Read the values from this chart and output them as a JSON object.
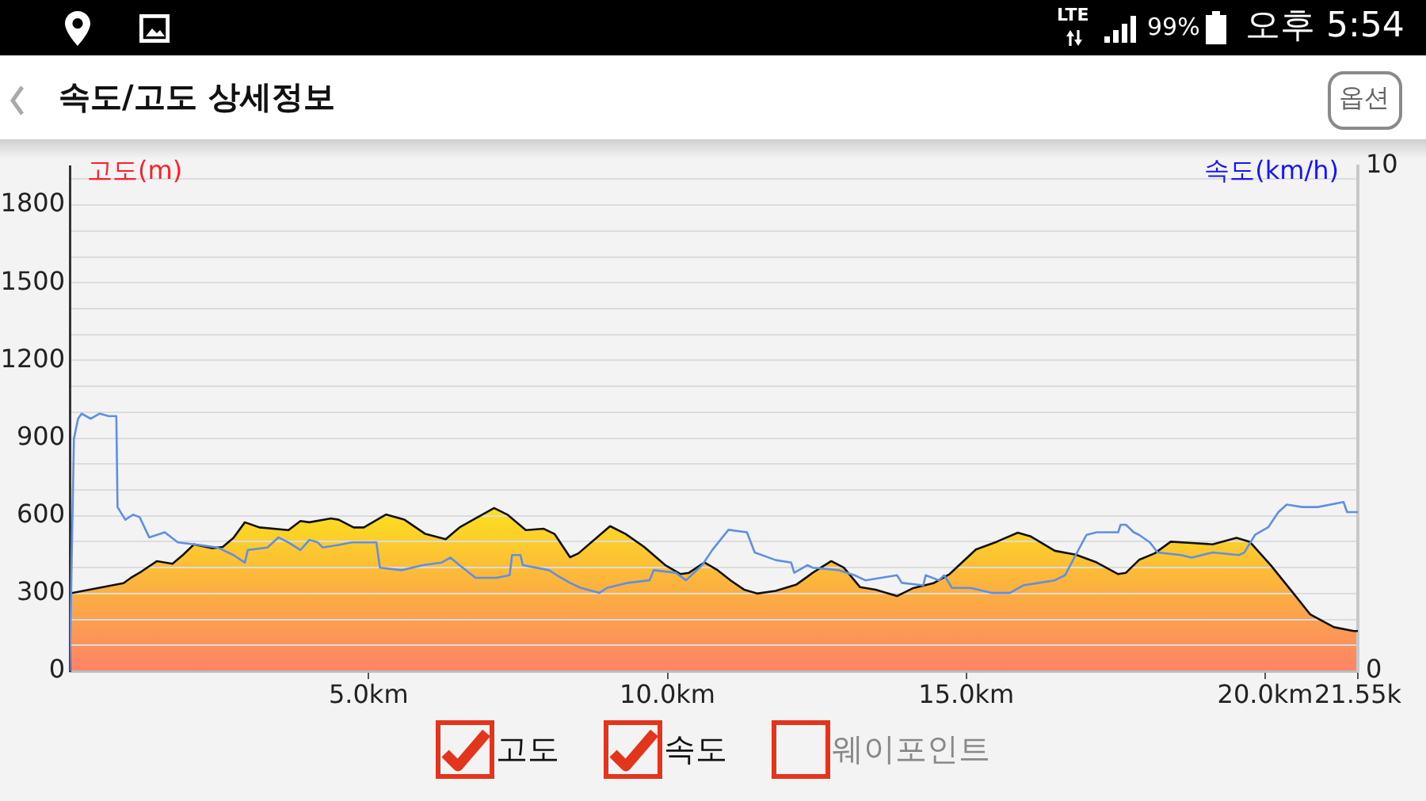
{
  "chart_data": {
    "type": "area",
    "title": "속도/고도 상세정보",
    "ylabel": "고도(m)",
    "y2label": "속도(km/h)",
    "annotations": [
      "LTE",
      "99%",
      "오후 5:54",
      "옵션",
      "고도",
      "속도",
      "웨이포인트"
    ],
    "xlim": [
      0,
      21.55
    ],
    "xticks": [
      {
        "value": 5,
        "label": "5.0km"
      },
      {
        "value": 10,
        "label": "10.0km"
      },
      {
        "value": 15,
        "label": "15.0km"
      },
      {
        "value": 20,
        "label": "20.0km"
      },
      {
        "value": 21.55,
        "label": "21.55k"
      }
    ],
    "ylim": [
      0,
      1950
    ],
    "yticks": [
      0,
      {
        "value": 100,
        "label": null
      },
      {
        "value": 200,
        "label": null
      },
      300,
      {
        "value": 400,
        "label": null
      },
      {
        "value": 500,
        "label": null
      },
      600,
      {
        "value": 700,
        "label": null
      },
      {
        "value": 800,
        "label": null
      },
      900,
      {
        "value": 1000,
        "label": null
      },
      {
        "value": 1100,
        "label": null
      },
      1200,
      {
        "value": 1300,
        "label": null
      },
      {
        "value": 1400,
        "label": null
      },
      1500,
      {
        "value": 1600,
        "label": null
      },
      {
        "value": 1700,
        "label": null
      },
      1800,
      {
        "value": 1900,
        "label": null
      }
    ],
    "y2lim": [
      0,
      10
    ],
    "y2ticks": [
      0,
      10
    ],
    "grid": "y",
    "series": [
      {
        "type": "area",
        "color": "#fcb040",
        "x": [
          0,
          0.9,
          1.02,
          1.2,
          1.46,
          1.72,
          1.9,
          2.08,
          2.38,
          2.56,
          2.74,
          2.93,
          3.18,
          3.66,
          3.86,
          4.01,
          4.37,
          4.5,
          4.75,
          4.92,
          5.29,
          5.6,
          5.95,
          6.29,
          6.52,
          6.79,
          7.1,
          7.32,
          7.63,
          7.93,
          8.11,
          8.37,
          8.51,
          9.04,
          9.3,
          9.61,
          9.96,
          10.22,
          10.36,
          10.62,
          10.84,
          11.06,
          11.28,
          11.5,
          11.81,
          12.16,
          12.43,
          12.74,
          12.95,
          13.22,
          13.48,
          13.84,
          14.1,
          14.45,
          14.72,
          15.16,
          15.51,
          15.86,
          16.08,
          16.48,
          16.83,
          17.18,
          17.54,
          17.67,
          17.89,
          18.15,
          18.42,
          18.77,
          19.12,
          19.52,
          19.74,
          20.09,
          20.44,
          20.75,
          21.15,
          21.48,
          21.55
        ],
        "values": [
          300,
          340,
          360,
          385,
          425,
          415,
          450,
          490,
          475,
          480,
          515,
          575,
          555,
          545,
          580,
          575,
          590,
          585,
          555,
          555,
          605,
          585,
          530,
          510,
          555,
          590,
          630,
          605,
          545,
          550,
          530,
          440,
          455,
          560,
          530,
          480,
          410,
          375,
          380,
          420,
          390,
          350,
          315,
          300,
          310,
          335,
          380,
          425,
          400,
          325,
          315,
          290,
          320,
          340,
          375,
          470,
          500,
          535,
          520,
          465,
          450,
          420,
          375,
          380,
          430,
          455,
          500,
          495,
          490,
          515,
          500,
          410,
          310,
          220,
          170,
          155,
          155
        ]
      },
      {
        "type": "line",
        "color": "#5f8fe3",
        "axis": "y2",
        "x": [
          0,
          0.07,
          0.14,
          0.2,
          0.35,
          0.5,
          0.65,
          0.78,
          0.8,
          0.93,
          1.06,
          1.17,
          1.33,
          1.59,
          1.81,
          2.16,
          2.47,
          2.74,
          2.93,
          2.98,
          3.31,
          3.49,
          3.66,
          3.86,
          4.01,
          4.15,
          4.23,
          4.5,
          4.72,
          4.94,
          5.13,
          5.19,
          5.55,
          5.91,
          6.22,
          6.37,
          6.52,
          6.79,
          7.14,
          7.36,
          7.4,
          7.54,
          7.58,
          8.02,
          8.15,
          8.37,
          8.55,
          8.86,
          8.99,
          9.34,
          9.7,
          9.77,
          10.14,
          10.31,
          10.58,
          10.75,
          11.02,
          11.33,
          11.46,
          11.81,
          12.07,
          12.12,
          12.34,
          12.43,
          12.87,
          13.13,
          13.31,
          13.84,
          13.92,
          14.28,
          14.32,
          14.54,
          14.63,
          14.76,
          15.07,
          15.42,
          15.73,
          15.95,
          16.22,
          16.48,
          16.65,
          16.83,
          17.01,
          17.18,
          17.54,
          17.58,
          17.67,
          17.8,
          17.89,
          18.07,
          18.2,
          18.59,
          18.77,
          19.12,
          19.56,
          19.65,
          19.83,
          20.05,
          20.22,
          20.36,
          20.62,
          20.88,
          21.31,
          21.37,
          21.55
        ],
        "values": [
          0,
          4.6,
          5.0,
          5.1,
          5.0,
          5.1,
          5.05,
          5.05,
          3.25,
          3.0,
          3.1,
          3.05,
          2.65,
          2.75,
          2.55,
          2.5,
          2.45,
          2.3,
          2.15,
          2.4,
          2.45,
          2.65,
          2.55,
          2.4,
          2.6,
          2.55,
          2.45,
          2.5,
          2.55,
          2.55,
          2.55,
          2.05,
          2.0,
          2.1,
          2.15,
          2.25,
          2.1,
          1.85,
          1.85,
          1.9,
          2.3,
          2.3,
          2.1,
          2.0,
          1.9,
          1.75,
          1.65,
          1.55,
          1.65,
          1.75,
          1.8,
          2.0,
          1.95,
          1.8,
          2.1,
          2.4,
          2.8,
          2.75,
          2.35,
          2.2,
          2.15,
          1.95,
          2.1,
          2.05,
          2.0,
          1.9,
          1.8,
          1.9,
          1.75,
          1.7,
          1.9,
          1.8,
          1.9,
          1.65,
          1.65,
          1.55,
          1.55,
          1.7,
          1.75,
          1.8,
          1.9,
          2.3,
          2.7,
          2.75,
          2.75,
          2.9,
          2.9,
          2.75,
          2.7,
          2.55,
          2.35,
          2.3,
          2.25,
          2.35,
          2.3,
          2.35,
          2.7,
          2.85,
          3.15,
          3.3,
          3.25,
          3.25,
          3.35,
          3.15,
          3.15
        ]
      }
    ]
  }
}
